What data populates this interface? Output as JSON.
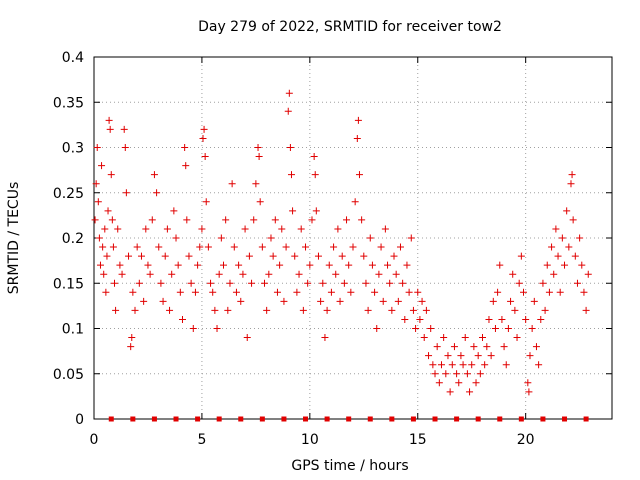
{
  "chart_data": {
    "type": "scatter",
    "title": "Day 279 of 2022, SRMTID for receiver tow2",
    "xlabel": "GPS time / hours",
    "ylabel": "SRMTID / TECUs",
    "xlim": [
      0,
      24
    ],
    "ylim": [
      0,
      0.4
    ],
    "x_ticks": [
      0,
      5,
      10,
      15,
      20
    ],
    "x_tick_labels": [
      "0",
      "5",
      "10",
      "15",
      "20"
    ],
    "y_ticks": [
      0,
      0.05,
      0.1,
      0.15,
      0.2,
      0.25,
      0.3,
      0.35,
      0.4
    ],
    "y_tick_labels": [
      "0",
      "0.05",
      "0.1",
      "0.15",
      "0.2",
      "0.25",
      "0.3",
      "0.35",
      "0.4"
    ],
    "grid": true,
    "marker": "+",
    "series": [
      {
        "name": "SRMTID",
        "color": "#e00000",
        "points": [
          [
            0.05,
            0.22
          ],
          [
            0.1,
            0.26
          ],
          [
            0.15,
            0.3
          ],
          [
            0.2,
            0.24
          ],
          [
            0.25,
            0.2
          ],
          [
            0.3,
            0.17
          ],
          [
            0.35,
            0.28
          ],
          [
            0.4,
            0.19
          ],
          [
            0.45,
            0.16
          ],
          [
            0.5,
            0.21
          ],
          [
            0.55,
            0.14
          ],
          [
            0.6,
            0.18
          ],
          [
            0.65,
            0.23
          ],
          [
            0.7,
            0.33
          ],
          [
            0.75,
            0.32
          ],
          [
            0.8,
            0.27
          ],
          [
            0.85,
            0.22
          ],
          [
            0.9,
            0.19
          ],
          [
            0.95,
            0.15
          ],
          [
            1.0,
            0.12
          ],
          [
            1.1,
            0.21
          ],
          [
            1.2,
            0.17
          ],
          [
            1.3,
            0.16
          ],
          [
            1.4,
            0.32
          ],
          [
            1.45,
            0.3
          ],
          [
            1.5,
            0.25
          ],
          [
            1.6,
            0.18
          ],
          [
            1.7,
            0.08
          ],
          [
            1.75,
            0.09
          ],
          [
            1.8,
            0.14
          ],
          [
            1.9,
            0.12
          ],
          [
            2.0,
            0.19
          ],
          [
            2.1,
            0.15
          ],
          [
            2.2,
            0.18
          ],
          [
            2.3,
            0.13
          ],
          [
            2.4,
            0.21
          ],
          [
            2.5,
            0.17
          ],
          [
            2.6,
            0.16
          ],
          [
            2.7,
            0.22
          ],
          [
            2.8,
            0.27
          ],
          [
            2.9,
            0.25
          ],
          [
            3.0,
            0.19
          ],
          [
            3.1,
            0.15
          ],
          [
            3.2,
            0.13
          ],
          [
            3.3,
            0.18
          ],
          [
            3.4,
            0.21
          ],
          [
            3.5,
            0.12
          ],
          [
            3.6,
            0.16
          ],
          [
            3.7,
            0.23
          ],
          [
            3.8,
            0.2
          ],
          [
            3.9,
            0.17
          ],
          [
            4.0,
            0.14
          ],
          [
            4.1,
            0.11
          ],
          [
            4.2,
            0.3
          ],
          [
            4.25,
            0.28
          ],
          [
            4.3,
            0.22
          ],
          [
            4.4,
            0.18
          ],
          [
            4.5,
            0.15
          ],
          [
            4.6,
            0.1
          ],
          [
            4.7,
            0.14
          ],
          [
            4.8,
            0.17
          ],
          [
            4.9,
            0.19
          ],
          [
            5.0,
            0.21
          ],
          [
            5.05,
            0.31
          ],
          [
            5.1,
            0.32
          ],
          [
            5.15,
            0.29
          ],
          [
            5.2,
            0.24
          ],
          [
            5.3,
            0.19
          ],
          [
            5.4,
            0.15
          ],
          [
            5.5,
            0.14
          ],
          [
            5.6,
            0.12
          ],
          [
            5.7,
            0.1
          ],
          [
            5.8,
            0.16
          ],
          [
            5.9,
            0.2
          ],
          [
            6.0,
            0.17
          ],
          [
            6.1,
            0.22
          ],
          [
            6.2,
            0.12
          ],
          [
            6.3,
            0.15
          ],
          [
            6.4,
            0.26
          ],
          [
            6.5,
            0.19
          ],
          [
            6.6,
            0.14
          ],
          [
            6.7,
            0.17
          ],
          [
            6.8,
            0.13
          ],
          [
            6.9,
            0.16
          ],
          [
            7.0,
            0.21
          ],
          [
            7.1,
            0.09
          ],
          [
            7.2,
            0.18
          ],
          [
            7.3,
            0.15
          ],
          [
            7.4,
            0.22
          ],
          [
            7.5,
            0.26
          ],
          [
            7.6,
            0.3
          ],
          [
            7.65,
            0.29
          ],
          [
            7.7,
            0.24
          ],
          [
            7.8,
            0.19
          ],
          [
            7.9,
            0.15
          ],
          [
            8.0,
            0.12
          ],
          [
            8.1,
            0.16
          ],
          [
            8.2,
            0.2
          ],
          [
            8.3,
            0.18
          ],
          [
            8.4,
            0.22
          ],
          [
            8.5,
            0.14
          ],
          [
            8.6,
            0.17
          ],
          [
            8.7,
            0.21
          ],
          [
            8.8,
            0.13
          ],
          [
            8.9,
            0.19
          ],
          [
            9.0,
            0.34
          ],
          [
            9.05,
            0.36
          ],
          [
            9.1,
            0.3
          ],
          [
            9.15,
            0.27
          ],
          [
            9.2,
            0.23
          ],
          [
            9.3,
            0.18
          ],
          [
            9.4,
            0.14
          ],
          [
            9.5,
            0.16
          ],
          [
            9.6,
            0.21
          ],
          [
            9.7,
            0.12
          ],
          [
            9.8,
            0.19
          ],
          [
            9.9,
            0.15
          ],
          [
            10.0,
            0.17
          ],
          [
            10.1,
            0.22
          ],
          [
            10.2,
            0.29
          ],
          [
            10.25,
            0.27
          ],
          [
            10.3,
            0.23
          ],
          [
            10.4,
            0.18
          ],
          [
            10.5,
            0.13
          ],
          [
            10.6,
            0.15
          ],
          [
            10.7,
            0.09
          ],
          [
            10.8,
            0.12
          ],
          [
            10.9,
            0.17
          ],
          [
            11.0,
            0.14
          ],
          [
            11.1,
            0.19
          ],
          [
            11.2,
            0.16
          ],
          [
            11.3,
            0.21
          ],
          [
            11.4,
            0.13
          ],
          [
            11.5,
            0.18
          ],
          [
            11.6,
            0.15
          ],
          [
            11.7,
            0.22
          ],
          [
            11.8,
            0.17
          ],
          [
            11.9,
            0.14
          ],
          [
            12.0,
            0.19
          ],
          [
            12.1,
            0.24
          ],
          [
            12.2,
            0.31
          ],
          [
            12.25,
            0.33
          ],
          [
            12.3,
            0.27
          ],
          [
            12.4,
            0.22
          ],
          [
            12.5,
            0.18
          ],
          [
            12.6,
            0.15
          ],
          [
            12.7,
            0.12
          ],
          [
            12.8,
            0.2
          ],
          [
            12.9,
            0.17
          ],
          [
            13.0,
            0.14
          ],
          [
            13.1,
            0.1
          ],
          [
            13.2,
            0.16
          ],
          [
            13.3,
            0.19
          ],
          [
            13.4,
            0.13
          ],
          [
            13.5,
            0.21
          ],
          [
            13.6,
            0.17
          ],
          [
            13.7,
            0.15
          ],
          [
            13.8,
            0.12
          ],
          [
            13.9,
            0.18
          ],
          [
            14.0,
            0.16
          ],
          [
            14.1,
            0.13
          ],
          [
            14.2,
            0.19
          ],
          [
            14.3,
            0.15
          ],
          [
            14.4,
            0.11
          ],
          [
            14.5,
            0.17
          ],
          [
            14.6,
            0.14
          ],
          [
            14.7,
            0.2
          ],
          [
            14.8,
            0.12
          ],
          [
            14.9,
            0.1
          ],
          [
            15.0,
            0.14
          ],
          [
            15.1,
            0.11
          ],
          [
            15.2,
            0.13
          ],
          [
            15.3,
            0.09
          ],
          [
            15.4,
            0.12
          ],
          [
            15.5,
            0.07
          ],
          [
            15.6,
            0.1
          ],
          [
            15.7,
            0.06
          ],
          [
            15.8,
            0.05
          ],
          [
            15.9,
            0.08
          ],
          [
            16.0,
            0.04
          ],
          [
            16.1,
            0.06
          ],
          [
            16.2,
            0.09
          ],
          [
            16.3,
            0.05
          ],
          [
            16.4,
            0.07
          ],
          [
            16.5,
            0.03
          ],
          [
            16.6,
            0.06
          ],
          [
            16.7,
            0.08
          ],
          [
            16.8,
            0.05
          ],
          [
            16.9,
            0.04
          ],
          [
            17.0,
            0.07
          ],
          [
            17.1,
            0.06
          ],
          [
            17.2,
            0.09
          ],
          [
            17.3,
            0.05
          ],
          [
            17.4,
            0.03
          ],
          [
            17.5,
            0.06
          ],
          [
            17.6,
            0.08
          ],
          [
            17.7,
            0.04
          ],
          [
            17.8,
            0.07
          ],
          [
            17.9,
            0.05
          ],
          [
            18.0,
            0.09
          ],
          [
            18.1,
            0.06
          ],
          [
            18.2,
            0.08
          ],
          [
            18.3,
            0.11
          ],
          [
            18.4,
            0.07
          ],
          [
            18.5,
            0.13
          ],
          [
            18.6,
            0.1
          ],
          [
            18.7,
            0.14
          ],
          [
            18.8,
            0.17
          ],
          [
            18.9,
            0.11
          ],
          [
            19.0,
            0.08
          ],
          [
            19.1,
            0.06
          ],
          [
            19.2,
            0.1
          ],
          [
            19.3,
            0.13
          ],
          [
            19.4,
            0.16
          ],
          [
            19.5,
            0.12
          ],
          [
            19.6,
            0.09
          ],
          [
            19.7,
            0.15
          ],
          [
            19.8,
            0.18
          ],
          [
            19.9,
            0.14
          ],
          [
            20.0,
            0.11
          ],
          [
            20.1,
            0.04
          ],
          [
            20.15,
            0.03
          ],
          [
            20.2,
            0.07
          ],
          [
            20.3,
            0.1
          ],
          [
            20.4,
            0.13
          ],
          [
            20.5,
            0.08
          ],
          [
            20.6,
            0.06
          ],
          [
            20.7,
            0.11
          ],
          [
            20.8,
            0.15
          ],
          [
            20.9,
            0.12
          ],
          [
            21.0,
            0.17
          ],
          [
            21.1,
            0.14
          ],
          [
            21.2,
            0.19
          ],
          [
            21.3,
            0.16
          ],
          [
            21.4,
            0.21
          ],
          [
            21.5,
            0.18
          ],
          [
            21.6,
            0.14
          ],
          [
            21.7,
            0.2
          ],
          [
            21.8,
            0.17
          ],
          [
            21.9,
            0.23
          ],
          [
            22.0,
            0.19
          ],
          [
            22.1,
            0.26
          ],
          [
            22.15,
            0.27
          ],
          [
            22.2,
            0.22
          ],
          [
            22.3,
            0.18
          ],
          [
            22.4,
            0.15
          ],
          [
            22.5,
            0.2
          ],
          [
            22.6,
            0.17
          ],
          [
            22.7,
            0.14
          ],
          [
            22.8,
            0.12
          ],
          [
            22.9,
            0.16
          ]
        ]
      },
      {
        "name": "zero-level markers",
        "color": "#e00000",
        "marker": "square",
        "points": [
          [
            0.8,
            0
          ],
          [
            1.8,
            0
          ],
          [
            2.8,
            0
          ],
          [
            3.8,
            0
          ],
          [
            4.8,
            0
          ],
          [
            5.8,
            0
          ],
          [
            6.8,
            0
          ],
          [
            7.8,
            0
          ],
          [
            8.8,
            0
          ],
          [
            9.8,
            0
          ],
          [
            10.8,
            0
          ],
          [
            11.8,
            0
          ],
          [
            12.8,
            0
          ],
          [
            13.8,
            0
          ],
          [
            14.8,
            0
          ],
          [
            15.8,
            0
          ],
          [
            16.8,
            0
          ],
          [
            17.8,
            0
          ],
          [
            18.8,
            0
          ],
          [
            19.8,
            0
          ],
          [
            20.8,
            0
          ],
          [
            21.8,
            0
          ],
          [
            22.8,
            0
          ]
        ]
      }
    ]
  }
}
